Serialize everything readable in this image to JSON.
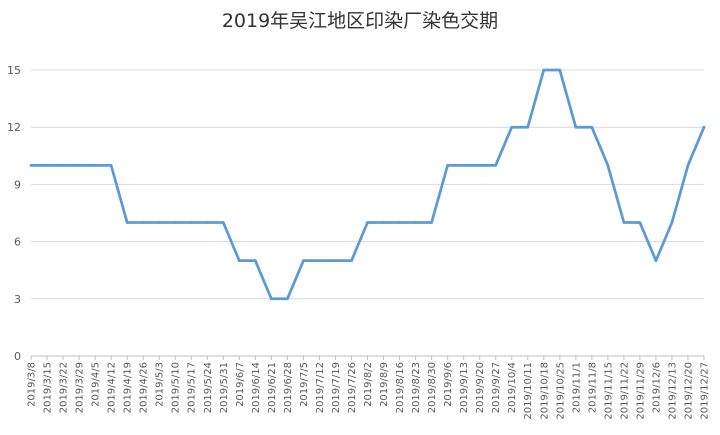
{
  "chart_data": {
    "type": "line",
    "title": "2019年吴江地区印染厂染色交期",
    "xlabel": "",
    "ylabel": "",
    "ylim": [
      0,
      15
    ],
    "yticks": [
      0,
      3,
      6,
      9,
      12,
      15
    ],
    "grid": true,
    "legend": "none",
    "line_color": "#5B9BD5",
    "grid_color": "#d9d9d9",
    "categories": [
      "2019/3/8",
      "2019/3/15",
      "2019/3/22",
      "2019/3/29",
      "2019/4/5",
      "2019/4/12",
      "2019/4/19",
      "2019/4/26",
      "2019/5/3",
      "2019/5/10",
      "2019/5/17",
      "2019/5/24",
      "2019/5/31",
      "2019/6/7",
      "2019/6/14",
      "2019/6/21",
      "2019/6/28",
      "2019/7/5",
      "2019/7/12",
      "2019/7/19",
      "2019/7/26",
      "2019/8/2",
      "2019/8/9",
      "2019/8/16",
      "2019/8/23",
      "2019/8/30",
      "2019/9/6",
      "2019/9/13",
      "2019/9/20",
      "2019/9/27",
      "2019/10/4",
      "2019/10/11",
      "2019/10/18",
      "2019/10/25",
      "2019/11/1",
      "2019/11/8",
      "2019/11/15",
      "2019/11/22",
      "2019/11/29",
      "2019/12/6",
      "2019/12/13",
      "2019/12/20",
      "2019/12/27"
    ],
    "values": [
      10,
      10,
      10,
      10,
      10,
      10,
      7,
      7,
      7,
      7,
      7,
      7,
      7,
      5,
      5,
      3,
      3,
      5,
      5,
      5,
      5,
      7,
      7,
      7,
      7,
      7,
      10,
      10,
      10,
      10,
      12,
      12,
      15,
      15,
      12,
      12,
      10,
      7,
      7,
      5,
      7,
      10,
      12
    ]
  }
}
